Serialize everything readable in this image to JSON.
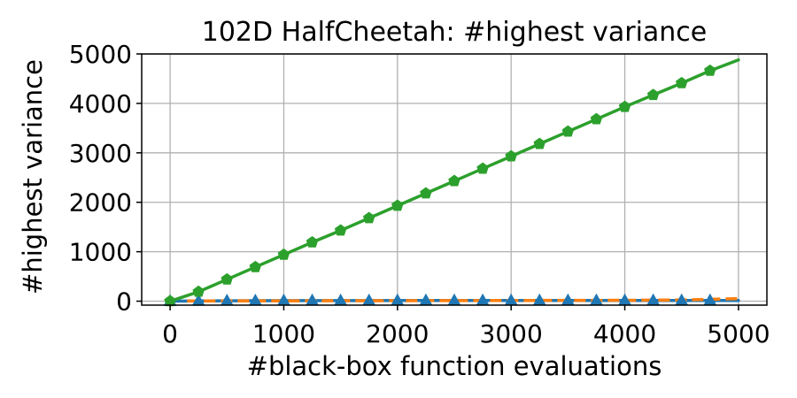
{
  "chart_data": {
    "type": "line",
    "title": "102D HalfCheetah: #highest variance",
    "xlabel": "#black-box function evaluations",
    "ylabel": "#highest variance",
    "xlim": [
      -250,
      5250
    ],
    "ylim": [
      -80,
      5000
    ],
    "xticks": [
      0,
      1000,
      2000,
      3000,
      4000,
      5000
    ],
    "yticks": [
      0,
      1000,
      2000,
      3000,
      4000,
      5000
    ],
    "grid": true,
    "series": [
      {
        "color": "#2ca02c",
        "marker": "pentagon",
        "line_style": "solid",
        "x": [
          0,
          250,
          500,
          750,
          1000,
          1250,
          1500,
          1750,
          2000,
          2250,
          2500,
          2750,
          3000,
          3250,
          3500,
          3750,
          4000,
          4250,
          4500,
          4750,
          5000
        ],
        "y": [
          0,
          190,
          440,
          690,
          940,
          1190,
          1430,
          1680,
          1930,
          2180,
          2430,
          2680,
          2930,
          3180,
          3430,
          3680,
          3930,
          4170,
          4410,
          4660,
          4880
        ],
        "marker_x": [
          0,
          250,
          500,
          750,
          1000,
          1250,
          1500,
          1750,
          2000,
          2250,
          2500,
          2750,
          3000,
          3250,
          3500,
          3750,
          4000,
          4250,
          4500,
          4750
        ]
      },
      {
        "color": "#1f77b4",
        "marker": "triangle",
        "line_style": "solid",
        "x": [
          0,
          250,
          500,
          750,
          1000,
          1250,
          1500,
          1750,
          2000,
          2250,
          2500,
          2750,
          3000,
          3250,
          3500,
          3750,
          4000,
          4250,
          4500,
          4750,
          5000
        ],
        "y": [
          0,
          5,
          8,
          10,
          11,
          12,
          12,
          12,
          13,
          13,
          13,
          13,
          13,
          13,
          14,
          14,
          14,
          14,
          14,
          14,
          14
        ],
        "marker_x": [
          0,
          250,
          500,
          750,
          1000,
          1250,
          1500,
          1750,
          2000,
          2250,
          2500,
          2750,
          3000,
          3250,
          3500,
          3750,
          4000,
          4250,
          4500,
          4750
        ]
      },
      {
        "color": "#ff7f0e",
        "marker": "none",
        "line_style": "dashed",
        "x": [
          150,
          1000,
          2000,
          3000,
          4000,
          4500,
          4750,
          5000
        ],
        "y": [
          5,
          8,
          10,
          14,
          18,
          25,
          38,
          52
        ],
        "marker_x": []
      }
    ]
  }
}
